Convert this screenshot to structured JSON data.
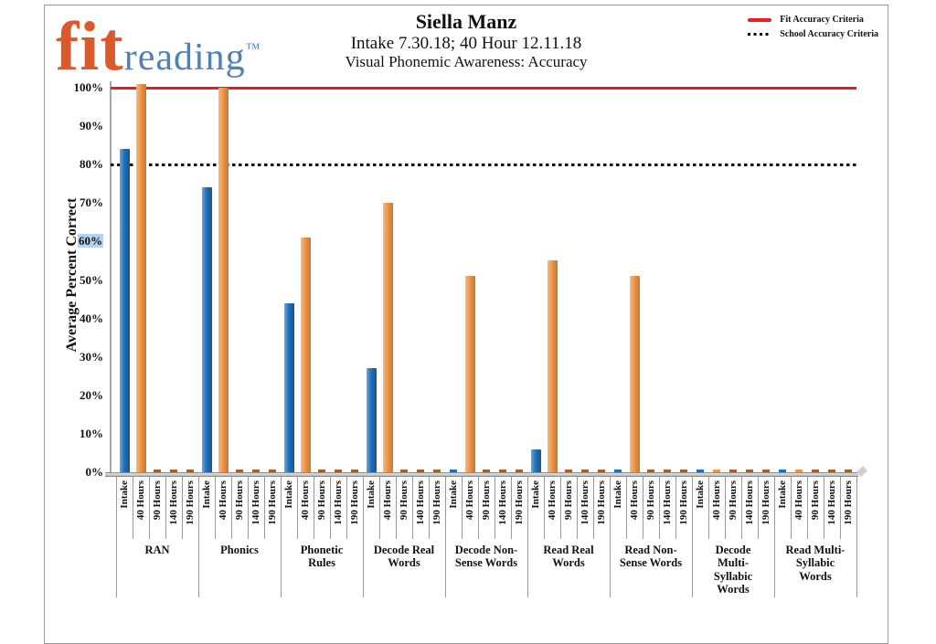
{
  "logo": {
    "fit": "fit",
    "reading": "reading",
    "tm": "™"
  },
  "header": {
    "title": "Siella Manz",
    "subtitle": "Intake 7.30.18; 40 Hour 12.11.18",
    "subtitle2": "Visual Phonemic Awareness: Accuracy"
  },
  "legend": {
    "items": [
      {
        "label": "Fit Accuracy Criteria",
        "swatch": "red-solid-line",
        "color": "#ED1C24"
      },
      {
        "label": "School Accuracy Criteria",
        "swatch": "black-dotted-line",
        "color": "#000000"
      }
    ]
  },
  "chart_data": {
    "type": "bar",
    "title": "Siella Manz",
    "subtitle": "Intake 7.30.18; 40 Hour 12.11.18",
    "subtitle2": "Visual Phonemic Awareness: Accuracy",
    "ylabel": "Average Percent Correct",
    "xlabel": "",
    "ylim": [
      0,
      100
    ],
    "yticks": [
      "0%",
      "10%",
      "20%",
      "30%",
      "40%",
      "50%",
      "60%",
      "70%",
      "80%",
      "90%",
      "100%"
    ],
    "highlighted_ytick": "60%",
    "grid": false,
    "legend_position": "top-right",
    "sub_categories": [
      "Intake",
      "40 Hours",
      "90 Hours",
      "140 Hours",
      "190 Hours"
    ],
    "bar_colors": {
      "Intake": "#1F6FB8",
      "40 Hours": "#EE9449",
      "zero_marker": "#A0622D"
    },
    "groups": [
      {
        "label": "RAN",
        "label_lines": [
          "RAN"
        ],
        "values": [
          84,
          101,
          0,
          0,
          0
        ]
      },
      {
        "label": "Phonics",
        "label_lines": [
          "Phonics"
        ],
        "values": [
          74,
          100,
          0,
          0,
          0
        ]
      },
      {
        "label": "Phonetic Rules",
        "label_lines": [
          "Phonetic",
          "Rules"
        ],
        "values": [
          44,
          61,
          0,
          0,
          0
        ]
      },
      {
        "label": "Decode Real Words",
        "label_lines": [
          "Decode Real",
          "Words"
        ],
        "values": [
          27,
          70,
          0,
          0,
          0
        ]
      },
      {
        "label": "Decode Non-Sense Words",
        "label_lines": [
          "Decode Non-",
          "Sense Words"
        ],
        "values": [
          0,
          51,
          0,
          0,
          0
        ]
      },
      {
        "label": "Read Real Words",
        "label_lines": [
          "Read Real",
          "Words"
        ],
        "values": [
          6,
          55,
          0,
          0,
          0
        ]
      },
      {
        "label": "Read Non-Sense Words",
        "label_lines": [
          "Read Non-",
          "Sense Words"
        ],
        "values": [
          0,
          51,
          0,
          0,
          0
        ]
      },
      {
        "label": "Decode Multi-Syllabic Words",
        "label_lines": [
          "Decode",
          "Multi-",
          "Syllabic",
          "Words"
        ],
        "values": [
          0,
          0,
          0,
          0,
          0
        ]
      },
      {
        "label": "Read Multi-Syllabic Words",
        "label_lines": [
          "Read Multi-",
          "Syllabic",
          "Words"
        ],
        "values": [
          0,
          0,
          0,
          0,
          0
        ]
      }
    ],
    "reference_lines": [
      {
        "label": "Fit Accuracy Criteria",
        "value": 100,
        "style": "solid",
        "color": "#ED1C24"
      },
      {
        "label": "School Accuracy Criteria",
        "value": 80,
        "style": "dotted",
        "color": "#000000"
      }
    ]
  }
}
